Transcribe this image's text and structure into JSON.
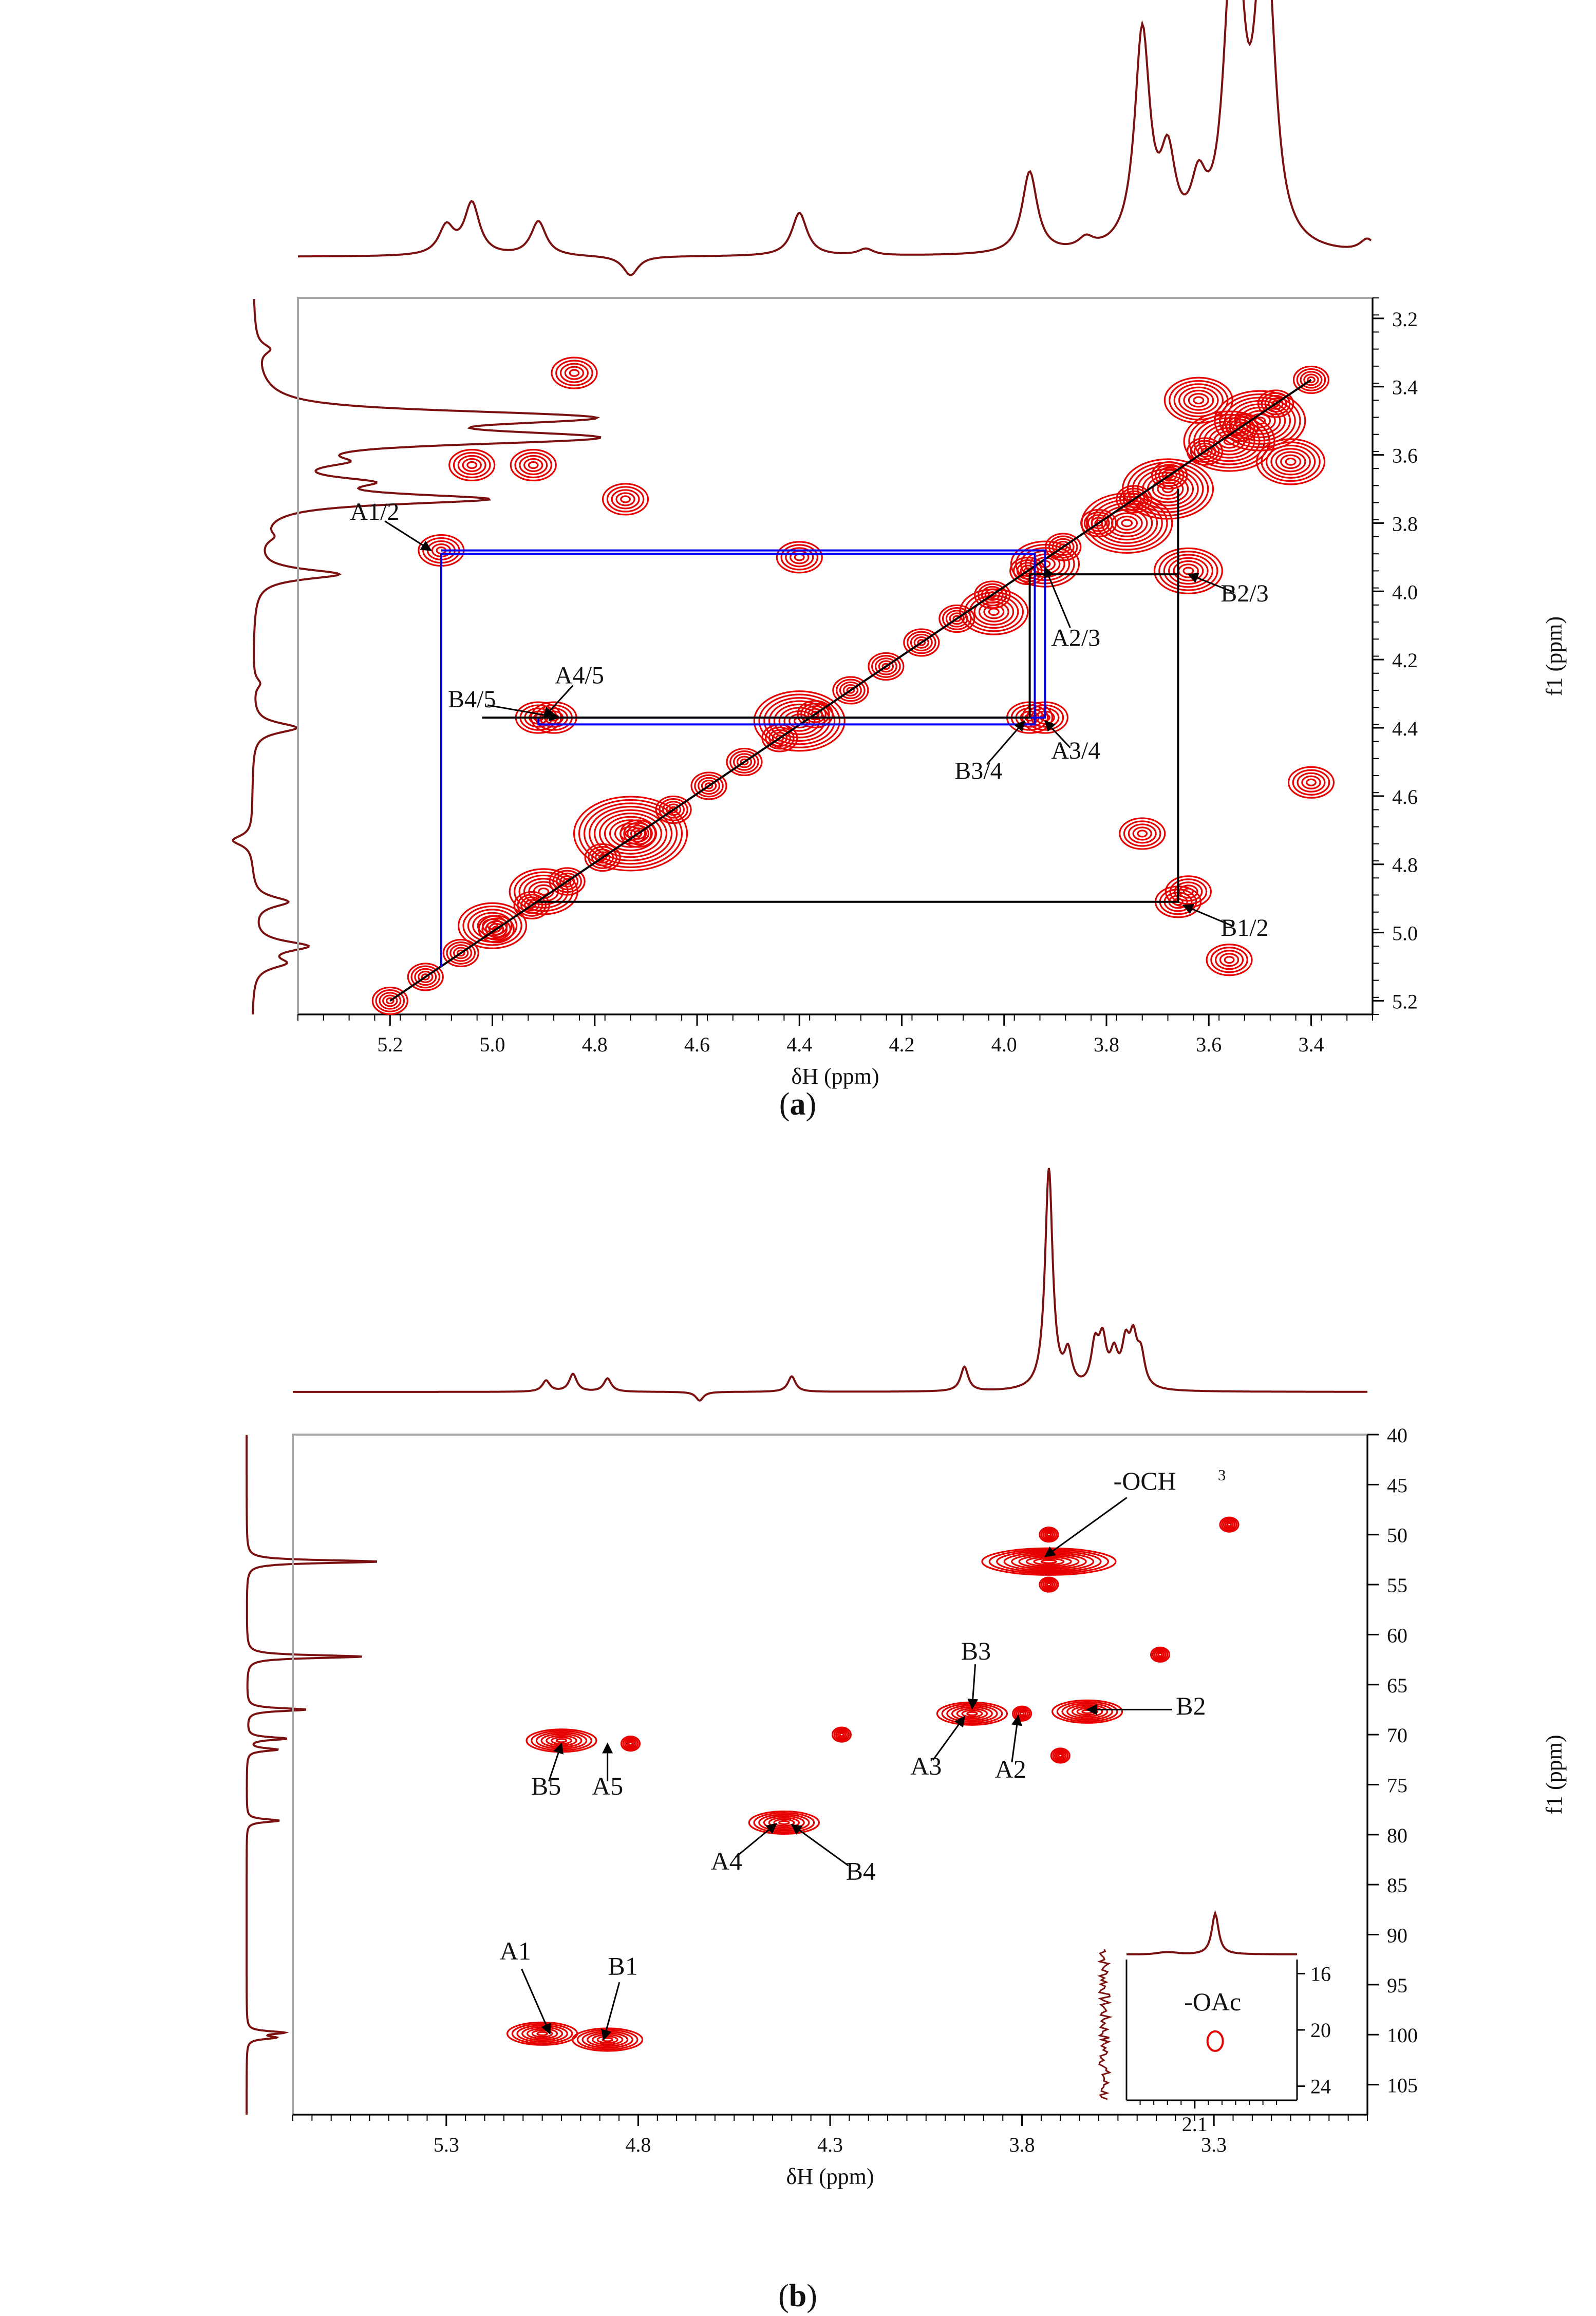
{
  "chart_data": [
    {
      "panel": "a",
      "type": "contour",
      "experiment_label": "2D homonuclear correlation (1H-1H)",
      "caption": {
        "open": "(",
        "letter": "a",
        "close": ")"
      },
      "xlabel": "δH (ppm)",
      "ylabel": "f1 (ppm)",
      "xlim": [
        5.38,
        3.28
      ],
      "ylim": [
        5.24,
        3.14
      ],
      "xticks": [
        5.2,
        5.0,
        4.8,
        4.6,
        4.4,
        4.2,
        4.0,
        3.8,
        3.6,
        3.4
      ],
      "yticks": [
        3.2,
        3.4,
        3.6,
        3.8,
        4.0,
        4.2,
        4.4,
        4.6,
        4.8,
        5.0,
        5.2
      ],
      "tick_labels_x": [
        "5.2",
        "5.0",
        "4.8",
        "4.6",
        "4.4",
        "4.2",
        "4.0",
        "3.8",
        "3.6",
        "3.4"
      ],
      "tick_labels_y": [
        "3.2",
        "3.4",
        "3.6",
        "3.8",
        "4.0",
        "4.2",
        "4.4",
        "4.6",
        "4.8",
        "5.0",
        "5.2"
      ],
      "diagonal": [
        [
          5.2,
          5.2
        ],
        [
          3.4,
          3.38
        ]
      ],
      "proton_spectrum_peaks": [
        {
          "ppm": 5.09,
          "height": 0.13
        },
        {
          "ppm": 5.04,
          "height": 0.24
        },
        {
          "ppm": 4.91,
          "height": 0.16
        },
        {
          "ppm": 4.73,
          "height": -0.09
        },
        {
          "ppm": 4.4,
          "height": 0.2
        },
        {
          "ppm": 4.27,
          "height": 0.03
        },
        {
          "ppm": 3.95,
          "height": 0.38
        },
        {
          "ppm": 3.84,
          "height": 0.05
        },
        {
          "ppm": 3.73,
          "height": 1.0
        },
        {
          "ppm": 3.68,
          "height": 0.38
        },
        {
          "ppm": 3.62,
          "height": 0.25
        },
        {
          "ppm": 3.56,
          "height": 0.55
        },
        {
          "ppm": 3.55,
          "height": 0.6
        },
        {
          "ppm": 3.54,
          "height": 0.5
        },
        {
          "ppm": 3.5,
          "height": 0.55
        },
        {
          "ppm": 3.49,
          "height": 0.6
        },
        {
          "ppm": 3.48,
          "height": 0.5
        },
        {
          "ppm": 3.29,
          "height": 0.06
        }
      ],
      "cross_peaks": [
        {
          "x": 5.1,
          "y": 3.88,
          "size": 1
        },
        {
          "x": 3.92,
          "y": 3.92,
          "size": 2
        },
        {
          "x": 3.95,
          "y": 4.37,
          "size": 1
        },
        {
          "x": 3.92,
          "y": 4.37,
          "size": 1
        },
        {
          "x": 4.91,
          "y": 4.37,
          "size": 1
        },
        {
          "x": 4.88,
          "y": 4.37,
          "size": 1
        },
        {
          "x": 3.64,
          "y": 4.88,
          "size": 1
        },
        {
          "x": 3.66,
          "y": 4.91,
          "size": 1
        },
        {
          "x": 3.64,
          "y": 3.94,
          "size": 2
        },
        {
          "x": 4.4,
          "y": 3.9,
          "size": 1
        },
        {
          "x": 4.92,
          "y": 3.63,
          "size": 1
        },
        {
          "x": 5.04,
          "y": 3.63,
          "size": 1
        },
        {
          "x": 4.74,
          "y": 3.73,
          "size": 1
        },
        {
          "x": 4.84,
          "y": 3.36,
          "size": 1
        },
        {
          "x": 3.56,
          "y": 5.08,
          "size": 1
        },
        {
          "x": 3.73,
          "y": 4.71,
          "size": 1
        },
        {
          "x": 3.4,
          "y": 4.56,
          "size": 1
        },
        {
          "x": 4.73,
          "y": 4.71,
          "size": 4
        },
        {
          "x": 4.4,
          "y": 4.38,
          "size": 3
        },
        {
          "x": 4.02,
          "y": 4.06,
          "size": 2
        },
        {
          "x": 3.56,
          "y": 3.56,
          "size": 3
        },
        {
          "x": 3.5,
          "y": 3.5,
          "size": 3
        },
        {
          "x": 3.68,
          "y": 3.7,
          "size": 3
        },
        {
          "x": 3.76,
          "y": 3.8,
          "size": 3
        },
        {
          "x": 5.0,
          "y": 4.98,
          "size": 2
        },
        {
          "x": 4.9,
          "y": 4.88,
          "size": 2
        },
        {
          "x": 3.62,
          "y": 3.44,
          "size": 2
        },
        {
          "x": 3.44,
          "y": 3.62,
          "size": 2
        }
      ],
      "spin_paths": [
        {
          "color": "#0000ee",
          "points": [
            [
              5.1,
              3.88
            ],
            [
              3.92,
              3.88
            ],
            [
              3.92,
              4.37
            ],
            [
              4.91,
              4.37
            ],
            [
              4.91,
              4.39
            ],
            [
              3.94,
              4.39
            ],
            [
              3.94,
              3.89
            ],
            [
              5.1,
              3.89
            ],
            [
              5.1,
              5.1
            ]
          ]
        },
        {
          "color": "#000000",
          "points": [
            [
              3.66,
              3.7
            ],
            [
              3.66,
              4.91
            ],
            [
              4.91,
              4.91
            ]
          ]
        },
        {
          "color": "#000000",
          "points": [
            [
              3.66,
              3.95
            ],
            [
              3.95,
              3.95
            ],
            [
              3.95,
              4.37
            ],
            [
              5.02,
              4.37
            ]
          ]
        }
      ],
      "annotations": [
        {
          "label": "A1/2",
          "text_at": [
            5.23,
            3.79
          ],
          "arrow_to": [
            5.12,
            3.88
          ]
        },
        {
          "label": "A2/3",
          "text_at": [
            3.86,
            4.16
          ],
          "arrow_to": [
            3.92,
            3.93
          ]
        },
        {
          "label": "B2/3",
          "text_at": [
            3.53,
            4.03
          ],
          "arrow_to": [
            3.64,
            3.95
          ]
        },
        {
          "label": "A4/5",
          "text_at": [
            4.83,
            4.27
          ],
          "arrow_to": [
            4.9,
            4.37
          ]
        },
        {
          "label": "B4/5",
          "text_at": [
            5.04,
            4.34
          ],
          "arrow_to": [
            4.87,
            4.37
          ]
        },
        {
          "label": "B3/4",
          "text_at": [
            4.05,
            4.55
          ],
          "arrow_to": [
            3.96,
            4.38
          ]
        },
        {
          "label": "A3/4",
          "text_at": [
            3.86,
            4.49
          ],
          "arrow_to": [
            3.92,
            4.38
          ]
        },
        {
          "label": "B1/2",
          "text_at": [
            3.53,
            5.01
          ],
          "arrow_to": [
            3.65,
            4.92
          ]
        }
      ]
    },
    {
      "panel": "b",
      "type": "contour",
      "experiment_label": "2D heteronuclear correlation (1H-13C)",
      "caption": {
        "open": "(",
        "letter": "b",
        "close": ")"
      },
      "xlabel": "δH (ppm)",
      "ylabel": "f1 (ppm)",
      "xlim": [
        5.7,
        2.9
      ],
      "ylim": [
        108.0,
        40.0
      ],
      "xticks": [
        5.3,
        4.8,
        4.3,
        3.8,
        3.3
      ],
      "yticks": [
        40,
        45,
        50,
        55,
        60,
        65,
        70,
        75,
        80,
        85,
        90,
        95,
        100,
        105
      ],
      "tick_labels_x": [
        "5.3",
        "4.8",
        "4.3",
        "3.8",
        "3.3"
      ],
      "tick_labels_y": [
        "40",
        "45",
        "50",
        "55",
        "60",
        "65",
        "70",
        "75",
        "80",
        "85",
        "90",
        "95",
        "100",
        "105"
      ],
      "proton_spectrum_peaks": [
        {
          "ppm": 5.04,
          "height": 0.05
        },
        {
          "ppm": 4.97,
          "height": 0.08
        },
        {
          "ppm": 4.88,
          "height": 0.06
        },
        {
          "ppm": 4.64,
          "height": -0.04
        },
        {
          "ppm": 4.4,
          "height": 0.07
        },
        {
          "ppm": 3.95,
          "height": 0.11
        },
        {
          "ppm": 3.73,
          "height": 1.0
        },
        {
          "ppm": 3.68,
          "height": 0.15
        },
        {
          "ppm": 3.61,
          "height": 0.18
        },
        {
          "ppm": 3.59,
          "height": 0.2
        },
        {
          "ppm": 3.56,
          "height": 0.14
        },
        {
          "ppm": 3.53,
          "height": 0.18
        },
        {
          "ppm": 3.51,
          "height": 0.2
        },
        {
          "ppm": 3.49,
          "height": 0.14
        }
      ],
      "carbon_spectrum_peaks": [
        {
          "ppm": 52.7,
          "height": 1.0
        },
        {
          "ppm": 62.2,
          "height": 0.88
        },
        {
          "ppm": 67.5,
          "height": 0.45
        },
        {
          "ppm": 70.4,
          "height": 0.3
        },
        {
          "ppm": 71.5,
          "height": 0.23
        },
        {
          "ppm": 78.6,
          "height": 0.25
        },
        {
          "ppm": 99.8,
          "height": 0.27
        },
        {
          "ppm": 100.3,
          "height": 0.2
        }
      ],
      "cross_peaks": [
        {
          "x": 3.73,
          "y": 52.7,
          "size": 3
        },
        {
          "x": 3.73,
          "y": 50.0,
          "size": 1
        },
        {
          "x": 3.73,
          "y": 55.0,
          "size": 1
        },
        {
          "x": 3.26,
          "y": 49.0,
          "size": 1
        },
        {
          "x": 3.44,
          "y": 62.0,
          "size": 1
        },
        {
          "x": 3.93,
          "y": 67.9,
          "size": 2
        },
        {
          "x": 3.63,
          "y": 67.7,
          "size": 2
        },
        {
          "x": 3.8,
          "y": 67.9,
          "size": 1
        },
        {
          "x": 3.7,
          "y": 72.1,
          "size": 1
        },
        {
          "x": 5.0,
          "y": 70.6,
          "size": 2
        },
        {
          "x": 4.82,
          "y": 70.9,
          "size": 1
        },
        {
          "x": 4.27,
          "y": 70.0,
          "size": 1
        },
        {
          "x": 4.42,
          "y": 78.8,
          "size": 2
        },
        {
          "x": 5.05,
          "y": 99.9,
          "size": 2
        },
        {
          "x": 4.88,
          "y": 100.5,
          "size": 2
        }
      ],
      "annotations": [
        {
          "label": "-OCH",
          "subscript": "3",
          "text_at": [
            3.48,
            45.5
          ],
          "arrow_to": [
            3.74,
            52.2
          ]
        },
        {
          "label": "B3",
          "text_at": [
            3.92,
            62.5
          ],
          "arrow_to": [
            3.93,
            67.4
          ]
        },
        {
          "label": "B2",
          "text_at": [
            3.36,
            68.0
          ],
          "arrow_to": [
            3.63,
            67.5
          ]
        },
        {
          "label": "A3",
          "text_at": [
            4.05,
            74.0
          ],
          "arrow_to": [
            3.95,
            68.2
          ]
        },
        {
          "label": "A2",
          "text_at": [
            3.83,
            74.3
          ],
          "arrow_to": [
            3.81,
            68.1
          ]
        },
        {
          "label": "B5",
          "text_at": [
            5.04,
            76.0
          ],
          "arrow_to": [
            5.0,
            70.9
          ]
        },
        {
          "label": "A5",
          "text_at": [
            4.88,
            76.0
          ],
          "arrow_to": [
            4.88,
            70.9
          ]
        },
        {
          "label": "A4",
          "text_at": [
            4.57,
            83.5
          ],
          "arrow_to": [
            4.44,
            78.9
          ]
        },
        {
          "label": "B4",
          "text_at": [
            4.22,
            84.5
          ],
          "arrow_to": [
            4.4,
            79.0
          ]
        },
        {
          "label": "A1",
          "text_at": [
            5.12,
            92.5
          ],
          "arrow_to": [
            5.03,
            99.9
          ]
        },
        {
          "label": "B1",
          "text_at": [
            4.84,
            94.0
          ],
          "arrow_to": [
            4.89,
            100.5
          ]
        }
      ],
      "inset": {
        "xlim": [
          2.2,
          1.95
        ],
        "ylim": [
          25.0,
          15.0
        ],
        "xticks": [
          2.1
        ],
        "yticks": [
          16,
          20,
          24
        ],
        "tick_labels_x": [
          "2.1"
        ],
        "tick_labels_y": [
          "16",
          "20",
          "24"
        ],
        "label": "-OAc",
        "cross_peak": {
          "x": 2.07,
          "y": 20.8
        },
        "proton_peak_ppm": 2.07
      }
    }
  ]
}
